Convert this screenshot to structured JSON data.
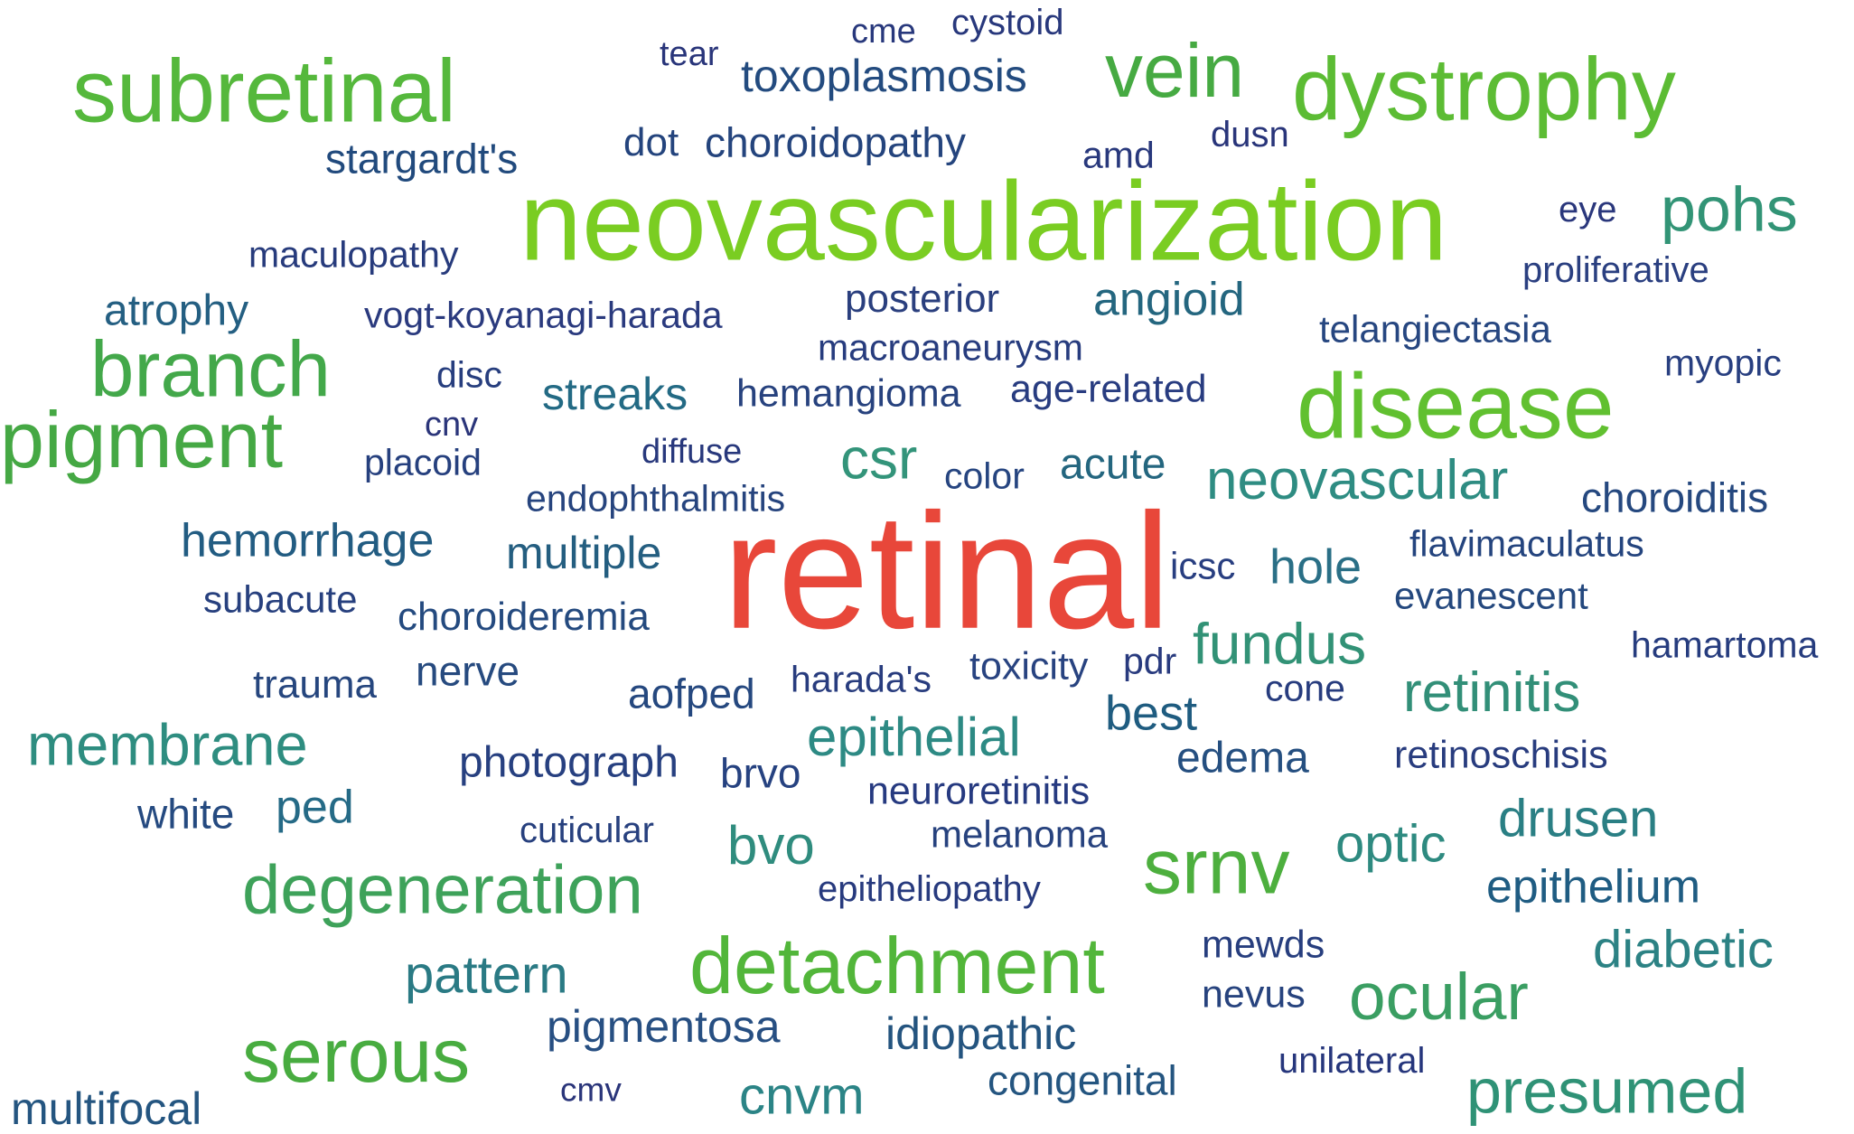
{
  "palette": {
    "navy": "#283d80",
    "blue": "#1f5a80",
    "teal": "#2e8a86",
    "green": "#3aa64e",
    "lime": "#6cc72a",
    "red": "#e8473a"
  },
  "words": [
    {
      "text": "retinal",
      "color": "#e8473a"
    },
    {
      "text": "neovascularization",
      "color": "#7acd22"
    },
    {
      "text": "subretinal",
      "color": "#55b83c"
    },
    {
      "text": "dystrophy",
      "color": "#5cbc34"
    },
    {
      "text": "disease",
      "color": "#61c030"
    },
    {
      "text": "vein",
      "color": "#46aa42"
    },
    {
      "text": "branch",
      "color": "#43a84a"
    },
    {
      "text": "pigment",
      "color": "#45a844"
    },
    {
      "text": "detachment",
      "color": "#52b63a"
    },
    {
      "text": "srnv",
      "color": "#4daf3e"
    },
    {
      "text": "serous",
      "color": "#48ac40"
    },
    {
      "text": "degeneration",
      "color": "#3ea25a"
    },
    {
      "text": "ocular",
      "color": "#3a9e62"
    },
    {
      "text": "presumed",
      "color": "#2f9276"
    },
    {
      "text": "pohs",
      "color": "#329476"
    },
    {
      "text": "membrane",
      "color": "#2e8d80"
    },
    {
      "text": "neovascular",
      "color": "#2e8c82"
    },
    {
      "text": "fundus",
      "color": "#329276"
    },
    {
      "text": "retinitis",
      "color": "#328f78"
    },
    {
      "text": "csr",
      "color": "#33947a"
    },
    {
      "text": "epithelial",
      "color": "#2d8a84"
    },
    {
      "text": "drusen",
      "color": "#2a7f84"
    },
    {
      "text": "diabetic",
      "color": "#2c8284"
    },
    {
      "text": "optic",
      "color": "#2e8a80"
    },
    {
      "text": "bvo",
      "color": "#2f8c7e"
    },
    {
      "text": "cnvm",
      "color": "#2b8486"
    },
    {
      "text": "pattern",
      "color": "#2a7a84"
    },
    {
      "text": "streaks",
      "color": "#236a84"
    },
    {
      "text": "angioid",
      "color": "#24667f"
    },
    {
      "text": "acute",
      "color": "#24667f"
    },
    {
      "text": "multiple",
      "color": "#245e80"
    },
    {
      "text": "hole",
      "color": "#2a6f86"
    },
    {
      "text": "best",
      "color": "#1f5c80"
    },
    {
      "text": "epithelium",
      "color": "#1f5c82"
    },
    {
      "text": "hemorrhage",
      "color": "#225c82"
    },
    {
      "text": "atrophy",
      "color": "#245f82"
    },
    {
      "text": "ped",
      "color": "#256a86"
    },
    {
      "text": "pigmentosa",
      "color": "#274f82"
    },
    {
      "text": "idiopathic",
      "color": "#24547f"
    },
    {
      "text": "congenital",
      "color": "#245580"
    },
    {
      "text": "multifocal",
      "color": "#245580"
    },
    {
      "text": "toxoplasmosis",
      "color": "#234b7f"
    },
    {
      "text": "stargardt's",
      "color": "#214a7d"
    },
    {
      "text": "dot",
      "color": "#24447d"
    },
    {
      "text": "choroidopathy",
      "color": "#24447d"
    },
    {
      "text": "maculopathy",
      "color": "#273b7c"
    },
    {
      "text": "vogt-koyanagi-harada",
      "color": "#2a3a7e"
    },
    {
      "text": "posterior",
      "color": "#2a3f7e"
    },
    {
      "text": "macroaneurysm",
      "color": "#273c7e"
    },
    {
      "text": "telangiectasia",
      "color": "#264680"
    },
    {
      "text": "proliferative",
      "color": "#2a3f80"
    },
    {
      "text": "myopic",
      "color": "#283f80"
    },
    {
      "text": "disc",
      "color": "#273e7e"
    },
    {
      "text": "cnv",
      "color": "#2b357a"
    },
    {
      "text": "placoid",
      "color": "#26407e"
    },
    {
      "text": "hemangioma",
      "color": "#27427e"
    },
    {
      "text": "age-related",
      "color": "#283c80"
    },
    {
      "text": "diffuse",
      "color": "#28387c"
    },
    {
      "text": "color",
      "color": "#264580"
    },
    {
      "text": "choroiditis",
      "color": "#25487f"
    },
    {
      "text": "endophthalmitis",
      "color": "#26447e"
    },
    {
      "text": "icsc",
      "color": "#283e80"
    },
    {
      "text": "flavimaculatus",
      "color": "#24447e"
    },
    {
      "text": "evanescent",
      "color": "#24487e"
    },
    {
      "text": "subacute",
      "color": "#27407e"
    },
    {
      "text": "choroideremia",
      "color": "#244a7f"
    },
    {
      "text": "hamartoma",
      "color": "#263c7e"
    },
    {
      "text": "trauma",
      "color": "#26467e"
    },
    {
      "text": "nerve",
      "color": "#264a7f"
    },
    {
      "text": "aofped",
      "color": "#25487f"
    },
    {
      "text": "harada's",
      "color": "#283c7e"
    },
    {
      "text": "toxicity",
      "color": "#284380"
    },
    {
      "text": "pdr",
      "color": "#283a7e"
    },
    {
      "text": "cone",
      "color": "#273c7e"
    },
    {
      "text": "photograph",
      "color": "#274080"
    },
    {
      "text": "brvo",
      "color": "#264280"
    },
    {
      "text": "edema",
      "color": "#254f80"
    },
    {
      "text": "retinoschisis",
      "color": "#283c7e"
    },
    {
      "text": "neuroretinitis",
      "color": "#263a80"
    },
    {
      "text": "white",
      "color": "#254a80"
    },
    {
      "text": "cuticular",
      "color": "#27407e"
    },
    {
      "text": "melanoma",
      "color": "#27427e"
    },
    {
      "text": "epitheliopathy",
      "color": "#273a7e"
    },
    {
      "text": "mewds",
      "color": "#273e7e"
    },
    {
      "text": "nevus",
      "color": "#27437e"
    },
    {
      "text": "unilateral",
      "color": "#26367c"
    },
    {
      "text": "cmv",
      "color": "#2a357a"
    },
    {
      "text": "cme",
      "color": "#28387c"
    },
    {
      "text": "cystoid",
      "color": "#28387c"
    },
    {
      "text": "tear",
      "color": "#29357a"
    },
    {
      "text": "amd",
      "color": "#28387c"
    },
    {
      "text": "dusn",
      "color": "#29357a"
    },
    {
      "text": "eye",
      "color": "#2a377c"
    }
  ]
}
